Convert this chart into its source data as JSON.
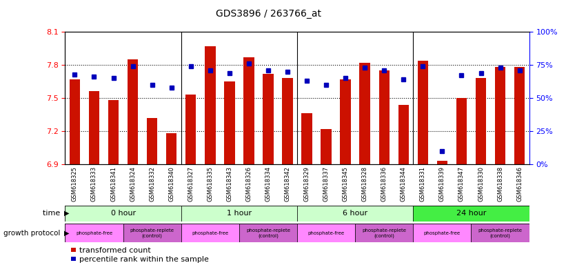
{
  "title": "GDS3896 / 263766_at",
  "samples": [
    "GSM618325",
    "GSM618333",
    "GSM618341",
    "GSM618324",
    "GSM618332",
    "GSM618340",
    "GSM618327",
    "GSM618335",
    "GSM618343",
    "GSM618326",
    "GSM618334",
    "GSM618342",
    "GSM618329",
    "GSM618337",
    "GSM618345",
    "GSM618328",
    "GSM618336",
    "GSM618344",
    "GSM618331",
    "GSM618339",
    "GSM618347",
    "GSM618330",
    "GSM618338",
    "GSM618346"
  ],
  "transformed_counts": [
    7.67,
    7.56,
    7.48,
    7.85,
    7.32,
    7.18,
    7.53,
    7.97,
    7.65,
    7.87,
    7.72,
    7.68,
    7.36,
    7.22,
    7.67,
    7.82,
    7.75,
    7.44,
    7.84,
    6.93,
    7.5,
    7.68,
    7.78,
    7.78
  ],
  "percentile_ranks": [
    68,
    66,
    65,
    74,
    60,
    58,
    74,
    71,
    69,
    76,
    71,
    70,
    63,
    60,
    65,
    73,
    71,
    64,
    74,
    10,
    67,
    69,
    73,
    71
  ],
  "ylim_left": [
    6.9,
    8.1
  ],
  "ylim_right": [
    0,
    100
  ],
  "yticks_left": [
    6.9,
    7.2,
    7.5,
    7.8,
    8.1
  ],
  "yticks_right": [
    0,
    25,
    50,
    75,
    100
  ],
  "bar_color": "#cc1100",
  "dot_color": "#0000bb",
  "group_data": [
    {
      "label": "0 hour",
      "start": 0,
      "end": 6,
      "color": "#ccffcc"
    },
    {
      "label": "1 hour",
      "start": 6,
      "end": 12,
      "color": "#ccffcc"
    },
    {
      "label": "6 hour",
      "start": 12,
      "end": 18,
      "color": "#ccffcc"
    },
    {
      "label": "24 hour",
      "start": 18,
      "end": 24,
      "color": "#44ee44"
    }
  ],
  "protocol_data": [
    {
      "label": "phosphate-free",
      "start": 0,
      "end": 3,
      "color": "#ff88ff"
    },
    {
      "label": "phosphate-replete\n(control)",
      "start": 3,
      "end": 6,
      "color": "#cc66cc"
    },
    {
      "label": "phosphate-free",
      "start": 6,
      "end": 9,
      "color": "#ff88ff"
    },
    {
      "label": "phosphate-replete\n(control)",
      "start": 9,
      "end": 12,
      "color": "#cc66cc"
    },
    {
      "label": "phosphate-free",
      "start": 12,
      "end": 15,
      "color": "#ff88ff"
    },
    {
      "label": "phosphate-replete\n(control)",
      "start": 15,
      "end": 18,
      "color": "#cc66cc"
    },
    {
      "label": "phosphate-free",
      "start": 18,
      "end": 21,
      "color": "#ff88ff"
    },
    {
      "label": "phosphate-replete\n(control)",
      "start": 21,
      "end": 24,
      "color": "#cc66cc"
    }
  ],
  "hlines": [
    7.2,
    7.5,
    7.8
  ],
  "vseps": [
    5.5,
    11.5,
    17.5
  ]
}
